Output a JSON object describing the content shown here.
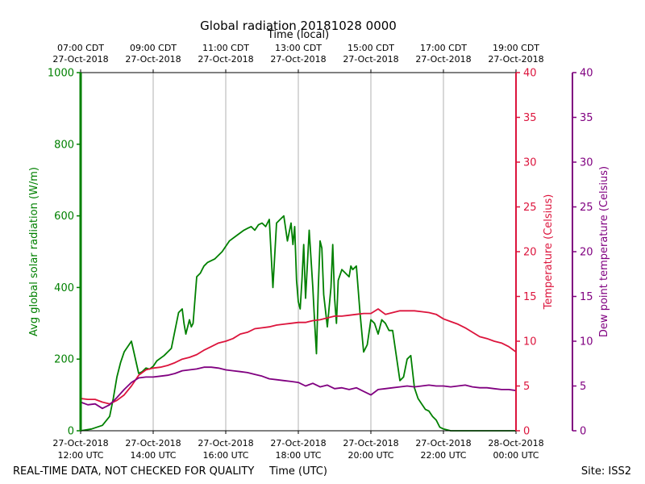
{
  "chart_data": {
    "type": "line",
    "title": "Global radiation 20181028 0000",
    "xlabel": "Time (UTC)",
    "xlabel_top": "Time (local)",
    "x_ticks_bottom": [
      {
        "h": 12,
        "line1": "27-Oct-2018",
        "line2": "12:00 UTC"
      },
      {
        "h": 14,
        "line1": "27-Oct-2018",
        "line2": "14:00 UTC"
      },
      {
        "h": 16,
        "line1": "27-Oct-2018",
        "line2": "16:00 UTC"
      },
      {
        "h": 18,
        "line1": "27-Oct-2018",
        "line2": "18:00 UTC"
      },
      {
        "h": 20,
        "line1": "27-Oct-2018",
        "line2": "20:00 UTC"
      },
      {
        "h": 22,
        "line1": "27-Oct-2018",
        "line2": "22:00 UTC"
      },
      {
        "h": 24,
        "line1": "28-Oct-2018",
        "line2": "00:00 UTC"
      }
    ],
    "x_ticks_top": [
      {
        "h": 12,
        "line1": "07:00 CDT",
        "line2": "27-Oct-2018"
      },
      {
        "h": 14,
        "line1": "09:00 CDT",
        "line2": "27-Oct-2018"
      },
      {
        "h": 16,
        "line1": "11:00 CDT",
        "line2": "27-Oct-2018"
      },
      {
        "h": 18,
        "line1": "13:00 CDT",
        "line2": "27-Oct-2018"
      },
      {
        "h": 20,
        "line1": "15:00 CDT",
        "line2": "27-Oct-2018"
      },
      {
        "h": 22,
        "line1": "17:00 CDT",
        "line2": "27-Oct-2018"
      },
      {
        "h": 24,
        "line1": "19:00 CDT",
        "line2": "27-Oct-2018"
      }
    ],
    "xlim": [
      12,
      24
    ],
    "grid": true,
    "axes": [
      {
        "id": "radiation",
        "label": "Avg global solar radiation (W/m)",
        "ylim": [
          0,
          1000
        ],
        "ticks": [
          0,
          200,
          400,
          600,
          800,
          1000
        ],
        "color": "#008000",
        "side": "left"
      },
      {
        "id": "temperature",
        "label": "Temperature (Celsius)",
        "ylim": [
          0,
          40
        ],
        "ticks": [
          0,
          5,
          10,
          15,
          20,
          25,
          30,
          35,
          40
        ],
        "color": "#dc143c",
        "side": "right"
      },
      {
        "id": "dewpoint",
        "label": "Dew point temperature (Celsius)",
        "ylim": [
          0,
          40
        ],
        "ticks": [
          0,
          5,
          10,
          15,
          20,
          25,
          30,
          35,
          40
        ],
        "color": "#800080",
        "side": "right-outer"
      }
    ],
    "series": [
      {
        "axis": "radiation",
        "color": "#008000",
        "x": [
          12.0,
          12.3,
          12.6,
          12.8,
          12.9,
          13.0,
          13.1,
          13.2,
          13.4,
          13.6,
          13.7,
          13.8,
          13.9,
          14.0,
          14.1,
          14.3,
          14.5,
          14.7,
          14.8,
          14.85,
          14.9,
          15.0,
          15.05,
          15.1,
          15.2,
          15.3,
          15.35,
          15.4,
          15.5,
          15.7,
          15.9,
          16.1,
          16.3,
          16.5,
          16.6,
          16.7,
          16.8,
          16.9,
          17.0,
          17.1,
          17.2,
          17.3,
          17.4,
          17.5,
          17.6,
          17.7,
          17.8,
          17.85,
          17.9,
          17.95,
          18.0,
          18.05,
          18.1,
          18.15,
          18.2,
          18.3,
          18.4,
          18.45,
          18.5,
          18.55,
          18.6,
          18.65,
          18.7,
          18.8,
          18.9,
          18.95,
          19.0,
          19.05,
          19.1,
          19.2,
          19.3,
          19.4,
          19.45,
          19.5,
          19.6,
          19.7,
          19.8,
          19.9,
          20.0,
          20.1,
          20.2,
          20.3,
          20.4,
          20.5,
          20.6,
          20.7,
          20.8,
          20.9,
          21.0,
          21.1,
          21.2,
          21.3,
          21.4,
          21.5,
          21.6,
          21.7,
          21.8,
          21.9,
          22.0,
          22.2,
          22.4,
          22.6,
          22.8,
          23.0,
          23.2,
          23.5,
          24.0
        ],
        "values": [
          0,
          5,
          15,
          40,
          90,
          150,
          190,
          220,
          250,
          160,
          165,
          175,
          172,
          180,
          195,
          210,
          230,
          330,
          340,
          300,
          270,
          310,
          290,
          300,
          430,
          440,
          450,
          460,
          470,
          480,
          500,
          530,
          545,
          560,
          565,
          570,
          560,
          575,
          580,
          570,
          590,
          400,
          580,
          590,
          600,
          530,
          580,
          520,
          570,
          420,
          360,
          340,
          420,
          520,
          370,
          560,
          400,
          300,
          215,
          400,
          530,
          510,
          380,
          290,
          400,
          520,
          370,
          300,
          420,
          450,
          440,
          430,
          460,
          450,
          460,
          330,
          220,
          240,
          310,
          300,
          270,
          310,
          300,
          280,
          280,
          210,
          140,
          150,
          200,
          210,
          120,
          90,
          75,
          60,
          55,
          40,
          30,
          10,
          5,
          0,
          0,
          0,
          0,
          0,
          0,
          0,
          0
        ]
      },
      {
        "axis": "temperature",
        "color": "#dc143c",
        "x": [
          12.0,
          12.2,
          12.4,
          12.6,
          12.8,
          13.0,
          13.2,
          13.4,
          13.6,
          13.8,
          14.0,
          14.2,
          14.4,
          14.6,
          14.8,
          15.0,
          15.2,
          15.4,
          15.6,
          15.8,
          16.0,
          16.2,
          16.4,
          16.6,
          16.8,
          17.0,
          17.2,
          17.4,
          17.6,
          17.8,
          18.0,
          18.2,
          18.4,
          18.6,
          18.8,
          19.0,
          19.2,
          19.4,
          19.6,
          19.8,
          20.0,
          20.2,
          20.4,
          20.6,
          20.8,
          21.0,
          21.2,
          21.4,
          21.6,
          21.8,
          22.0,
          22.2,
          22.4,
          22.6,
          22.8,
          23.0,
          23.2,
          23.4,
          23.6,
          23.8,
          24.0
        ],
        "values": [
          3.6,
          3.5,
          3.5,
          3.2,
          3.0,
          3.4,
          4.0,
          5.0,
          6.2,
          6.8,
          7.0,
          7.1,
          7.3,
          7.6,
          8.0,
          8.2,
          8.5,
          9.0,
          9.4,
          9.8,
          10.0,
          10.3,
          10.8,
          11.0,
          11.4,
          11.5,
          11.6,
          11.8,
          11.9,
          12.0,
          12.1,
          12.1,
          12.3,
          12.4,
          12.6,
          12.8,
          12.8,
          12.9,
          13.0,
          13.1,
          13.1,
          13.6,
          13.0,
          13.2,
          13.4,
          13.4,
          13.4,
          13.3,
          13.2,
          13.0,
          12.5,
          12.2,
          11.9,
          11.5,
          11.0,
          10.5,
          10.3,
          10.0,
          9.8,
          9.4,
          8.8
        ]
      },
      {
        "axis": "dewpoint",
        "color": "#800080",
        "x": [
          12.0,
          12.2,
          12.4,
          12.6,
          12.8,
          13.0,
          13.2,
          13.4,
          13.6,
          13.8,
          14.0,
          14.2,
          14.4,
          14.6,
          14.8,
          15.0,
          15.2,
          15.4,
          15.6,
          15.8,
          16.0,
          16.2,
          16.4,
          16.6,
          16.8,
          17.0,
          17.2,
          17.4,
          17.6,
          17.8,
          18.0,
          18.2,
          18.4,
          18.6,
          18.8,
          19.0,
          19.2,
          19.4,
          19.6,
          19.8,
          20.0,
          20.2,
          20.4,
          20.6,
          20.8,
          21.0,
          21.2,
          21.4,
          21.6,
          21.8,
          22.0,
          22.2,
          22.4,
          22.6,
          22.8,
          23.0,
          23.2,
          23.4,
          23.6,
          23.8,
          24.0
        ],
        "values": [
          3.2,
          2.9,
          3.0,
          2.5,
          2.9,
          3.7,
          4.6,
          5.4,
          5.9,
          6.0,
          6.0,
          6.1,
          6.2,
          6.4,
          6.7,
          6.8,
          6.9,
          7.1,
          7.1,
          7.0,
          6.8,
          6.7,
          6.6,
          6.5,
          6.3,
          6.1,
          5.8,
          5.7,
          5.6,
          5.5,
          5.4,
          5.0,
          5.3,
          4.9,
          5.1,
          4.7,
          4.8,
          4.6,
          4.8,
          4.4,
          4.0,
          4.6,
          4.7,
          4.8,
          4.9,
          5.0,
          4.9,
          5.0,
          5.1,
          5.0,
          5.0,
          4.9,
          5.0,
          5.1,
          4.9,
          4.8,
          4.8,
          4.7,
          4.6,
          4.6,
          4.5
        ]
      }
    ]
  },
  "footer": {
    "left": "REAL-TIME DATA, NOT CHECKED FOR QUALITY",
    "right": "Site: ISS2"
  }
}
